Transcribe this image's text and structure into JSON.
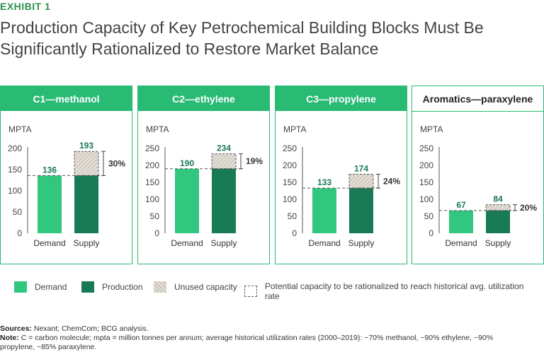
{
  "exhibit_label": "EXHIBIT 1",
  "title": "Production Capacity of Key Petrochemical Building Blocks Must Be Significantly Rationalized to Restore Market Balance",
  "colors": {
    "demand": "#32c77f",
    "production": "#197a56",
    "unused": "#d9d4cb",
    "panel_header": "#29ba74",
    "value_label": "#197a56"
  },
  "chart_data": [
    {
      "type": "bar",
      "title": "C1—methanol",
      "ylabel": "MPTA",
      "ylim": [
        0,
        200
      ],
      "yticks": [
        "0",
        "50",
        "100",
        "150",
        "200"
      ],
      "categories": [
        "Demand",
        "Supply"
      ],
      "demand": 136,
      "supply": 193,
      "demand_label": "136",
      "supply_label": "193",
      "rationalize_pct": "30%"
    },
    {
      "type": "bar",
      "title": "C2—ethylene",
      "ylabel": "MPTA",
      "ylim": [
        0,
        250
      ],
      "yticks": [
        "0",
        "50",
        "100",
        "150",
        "200",
        "250"
      ],
      "categories": [
        "Demand",
        "Supply"
      ],
      "demand": 190,
      "supply": 234,
      "demand_label": "190",
      "supply_label": "234",
      "rationalize_pct": "19%"
    },
    {
      "type": "bar",
      "title": "C3—propylene",
      "ylabel": "MPTA",
      "ylim": [
        0,
        250
      ],
      "yticks": [
        "0",
        "50",
        "100",
        "150",
        "200",
        "250"
      ],
      "categories": [
        "Demand",
        "Supply"
      ],
      "demand": 133,
      "supply": 174,
      "demand_label": "133",
      "supply_label": "174",
      "rationalize_pct": "24%"
    },
    {
      "type": "bar",
      "title": "Aromatics—paraxylene",
      "ylabel": "MPTA",
      "ylim": [
        0,
        250
      ],
      "yticks": [
        "0",
        "50",
        "100",
        "150",
        "200",
        "250"
      ],
      "categories": [
        "Demand",
        "Supply"
      ],
      "demand": 67,
      "supply": 84,
      "demand_label": "67",
      "supply_label": "84",
      "rationalize_pct": "20%"
    }
  ],
  "legend": {
    "demand": "Demand",
    "production": "Production",
    "unused": "Unused capacity",
    "potential": "Potential capacity to be rationalized to reach historical avg. utilization rate"
  },
  "footnotes": {
    "sources_label": "Sources:",
    "sources_text": " Nexant; ChemCom; BCG analysis.",
    "note_label": "Note:",
    "note_text": " C = carbon molecule; mpta = million tonnes per annum; average historical utilization rates (2000–2019): ~70% methanol, ~90% ethylene, ~90% propylene, ~85% paraxylene."
  }
}
